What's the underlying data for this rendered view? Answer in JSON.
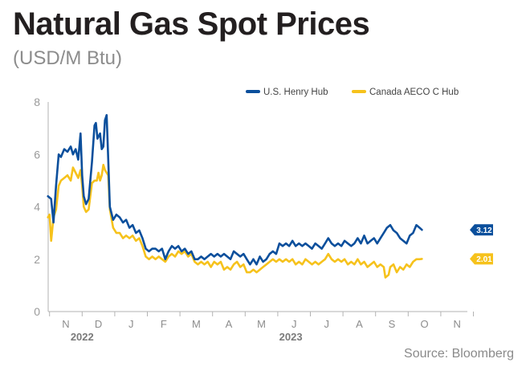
{
  "title": "Natural Gas Spot Prices",
  "subtitle": "(USD/M Btu)",
  "source": "Source: Bloomberg",
  "colors": {
    "henry": "#0b4f9c",
    "aeco": "#f6c21c",
    "axis": "#b3b3b3"
  },
  "chart_data": {
    "type": "line",
    "title": "Natural Gas Spot Prices",
    "subtitle": "(USD/M Btu)",
    "ylim": [
      0,
      8
    ],
    "yticks": [
      0,
      2,
      4,
      6,
      8
    ],
    "month_ticks": [
      "N",
      "D",
      "J",
      "F",
      "M",
      "A",
      "M",
      "J",
      "J",
      "A",
      "S",
      "O",
      "N"
    ],
    "years": [
      {
        "label": "2022",
        "month_index": 0.5
      },
      {
        "label": "2023",
        "month_index": 6.9
      }
    ],
    "legend": [
      "U.S. Henry Hub",
      "Canada AECO C Hub"
    ],
    "legend_position": "top-right",
    "grid": false,
    "x_unit": "months from Nov 1, 2022",
    "series": [
      {
        "name": "U.S. Henry Hub",
        "end_label": "3.12",
        "points": [
          [
            -0.55,
            4.4
          ],
          [
            -0.45,
            4.3
          ],
          [
            -0.38,
            3.4
          ],
          [
            -0.3,
            4.8
          ],
          [
            -0.22,
            6.0
          ],
          [
            -0.15,
            5.9
          ],
          [
            -0.05,
            6.2
          ],
          [
            0.05,
            6.1
          ],
          [
            0.15,
            6.3
          ],
          [
            0.22,
            6.0
          ],
          [
            0.3,
            6.2
          ],
          [
            0.38,
            5.8
          ],
          [
            0.45,
            6.8
          ],
          [
            0.5,
            5.2
          ],
          [
            0.55,
            4.4
          ],
          [
            0.62,
            4.1
          ],
          [
            0.7,
            4.3
          ],
          [
            0.8,
            5.7
          ],
          [
            0.88,
            7.1
          ],
          [
            0.92,
            7.2
          ],
          [
            0.97,
            6.6
          ],
          [
            1.05,
            6.8
          ],
          [
            1.1,
            6.2
          ],
          [
            1.15,
            6.3
          ],
          [
            1.2,
            7.3
          ],
          [
            1.25,
            7.5
          ],
          [
            1.3,
            5.8
          ],
          [
            1.35,
            4.0
          ],
          [
            1.45,
            3.5
          ],
          [
            1.55,
            3.7
          ],
          [
            1.65,
            3.6
          ],
          [
            1.75,
            3.4
          ],
          [
            1.85,
            3.5
          ],
          [
            1.95,
            3.2
          ],
          [
            2.05,
            3.3
          ],
          [
            2.15,
            3.0
          ],
          [
            2.25,
            3.1
          ],
          [
            2.35,
            2.8
          ],
          [
            2.45,
            2.4
          ],
          [
            2.55,
            2.3
          ],
          [
            2.65,
            2.4
          ],
          [
            2.75,
            2.4
          ],
          [
            2.85,
            2.3
          ],
          [
            2.95,
            2.4
          ],
          [
            3.05,
            2.0
          ],
          [
            3.15,
            2.3
          ],
          [
            3.25,
            2.5
          ],
          [
            3.35,
            2.4
          ],
          [
            3.45,
            2.5
          ],
          [
            3.55,
            2.3
          ],
          [
            3.65,
            2.4
          ],
          [
            3.75,
            2.2
          ],
          [
            3.85,
            2.3
          ],
          [
            3.95,
            2.0
          ],
          [
            4.05,
            2.0
          ],
          [
            4.15,
            2.1
          ],
          [
            4.25,
            2.0
          ],
          [
            4.35,
            2.1
          ],
          [
            4.45,
            2.2
          ],
          [
            4.55,
            2.1
          ],
          [
            4.65,
            2.2
          ],
          [
            4.75,
            2.1
          ],
          [
            4.85,
            2.2
          ],
          [
            4.95,
            2.1
          ],
          [
            5.05,
            2.0
          ],
          [
            5.15,
            2.3
          ],
          [
            5.25,
            2.2
          ],
          [
            5.35,
            2.1
          ],
          [
            5.45,
            2.2
          ],
          [
            5.55,
            2.0
          ],
          [
            5.65,
            1.8
          ],
          [
            5.75,
            2.0
          ],
          [
            5.85,
            1.8
          ],
          [
            5.95,
            2.1
          ],
          [
            6.05,
            1.9
          ],
          [
            6.15,
            2.0
          ],
          [
            6.25,
            2.2
          ],
          [
            6.35,
            2.3
          ],
          [
            6.45,
            2.2
          ],
          [
            6.55,
            2.6
          ],
          [
            6.65,
            2.5
          ],
          [
            6.75,
            2.6
          ],
          [
            6.85,
            2.5
          ],
          [
            6.95,
            2.7
          ],
          [
            7.05,
            2.5
          ],
          [
            7.15,
            2.6
          ],
          [
            7.25,
            2.5
          ],
          [
            7.35,
            2.6
          ],
          [
            7.45,
            2.5
          ],
          [
            7.55,
            2.4
          ],
          [
            7.65,
            2.6
          ],
          [
            7.75,
            2.5
          ],
          [
            7.85,
            2.4
          ],
          [
            7.95,
            2.6
          ],
          [
            8.05,
            2.8
          ],
          [
            8.15,
            2.6
          ],
          [
            8.25,
            2.5
          ],
          [
            8.35,
            2.6
          ],
          [
            8.45,
            2.5
          ],
          [
            8.55,
            2.7
          ],
          [
            8.65,
            2.6
          ],
          [
            8.75,
            2.5
          ],
          [
            8.85,
            2.6
          ],
          [
            8.95,
            2.8
          ],
          [
            9.05,
            2.6
          ],
          [
            9.15,
            2.9
          ],
          [
            9.25,
            2.6
          ],
          [
            9.35,
            2.7
          ],
          [
            9.45,
            2.8
          ],
          [
            9.55,
            2.6
          ],
          [
            9.65,
            2.8
          ],
          [
            9.75,
            3.0
          ],
          [
            9.85,
            3.2
          ],
          [
            9.95,
            3.3
          ],
          [
            10.05,
            3.1
          ],
          [
            10.15,
            3.0
          ],
          [
            10.25,
            2.8
          ],
          [
            10.35,
            2.7
          ],
          [
            10.45,
            2.6
          ],
          [
            10.55,
            2.9
          ],
          [
            10.65,
            3.0
          ],
          [
            10.75,
            3.3
          ],
          [
            10.85,
            3.2
          ],
          [
            10.92,
            3.12
          ]
        ]
      },
      {
        "name": "Canada AECO C Hub",
        "end_label": "2.01",
        "points": [
          [
            -0.55,
            3.6
          ],
          [
            -0.5,
            3.7
          ],
          [
            -0.45,
            2.7
          ],
          [
            -0.38,
            3.6
          ],
          [
            -0.3,
            3.9
          ],
          [
            -0.22,
            4.8
          ],
          [
            -0.15,
            5.0
          ],
          [
            -0.05,
            5.1
          ],
          [
            0.05,
            5.2
          ],
          [
            0.15,
            5.0
          ],
          [
            0.22,
            5.5
          ],
          [
            0.3,
            5.3
          ],
          [
            0.38,
            5.1
          ],
          [
            0.45,
            5.4
          ],
          [
            0.5,
            4.8
          ],
          [
            0.55,
            4.0
          ],
          [
            0.62,
            3.8
          ],
          [
            0.7,
            3.9
          ],
          [
            0.8,
            4.9
          ],
          [
            0.88,
            5.0
          ],
          [
            0.95,
            5.0
          ],
          [
            1.0,
            5.3
          ],
          [
            1.05,
            5.0
          ],
          [
            1.1,
            5.2
          ],
          [
            1.15,
            5.6
          ],
          [
            1.2,
            5.4
          ],
          [
            1.25,
            5.3
          ],
          [
            1.3,
            5.2
          ],
          [
            1.35,
            3.9
          ],
          [
            1.45,
            3.2
          ],
          [
            1.55,
            3.0
          ],
          [
            1.65,
            3.0
          ],
          [
            1.75,
            2.8
          ],
          [
            1.85,
            2.9
          ],
          [
            1.95,
            2.8
          ],
          [
            2.05,
            2.9
          ],
          [
            2.15,
            2.7
          ],
          [
            2.25,
            2.8
          ],
          [
            2.35,
            2.5
          ],
          [
            2.45,
            2.1
          ],
          [
            2.55,
            2.0
          ],
          [
            2.65,
            2.1
          ],
          [
            2.75,
            2.0
          ],
          [
            2.85,
            2.1
          ],
          [
            2.95,
            2.0
          ],
          [
            3.05,
            1.9
          ],
          [
            3.15,
            2.1
          ],
          [
            3.25,
            2.2
          ],
          [
            3.35,
            2.1
          ],
          [
            3.45,
            2.3
          ],
          [
            3.55,
            2.2
          ],
          [
            3.65,
            2.3
          ],
          [
            3.75,
            2.1
          ],
          [
            3.85,
            2.2
          ],
          [
            3.95,
            1.9
          ],
          [
            4.05,
            1.8
          ],
          [
            4.15,
            1.9
          ],
          [
            4.25,
            1.8
          ],
          [
            4.35,
            1.9
          ],
          [
            4.45,
            1.7
          ],
          [
            4.55,
            1.9
          ],
          [
            4.65,
            1.8
          ],
          [
            4.75,
            1.9
          ],
          [
            4.85,
            1.6
          ],
          [
            4.95,
            1.7
          ],
          [
            5.05,
            1.6
          ],
          [
            5.15,
            1.8
          ],
          [
            5.25,
            1.9
          ],
          [
            5.35,
            1.7
          ],
          [
            5.45,
            1.8
          ],
          [
            5.55,
            1.5
          ],
          [
            5.65,
            1.5
          ],
          [
            5.75,
            1.6
          ],
          [
            5.85,
            1.5
          ],
          [
            5.95,
            1.6
          ],
          [
            6.05,
            1.7
          ],
          [
            6.15,
            1.8
          ],
          [
            6.25,
            1.9
          ],
          [
            6.35,
            2.0
          ],
          [
            6.45,
            1.9
          ],
          [
            6.55,
            2.0
          ],
          [
            6.65,
            1.9
          ],
          [
            6.75,
            2.0
          ],
          [
            6.85,
            1.9
          ],
          [
            6.95,
            2.0
          ],
          [
            7.05,
            1.8
          ],
          [
            7.15,
            1.9
          ],
          [
            7.25,
            1.8
          ],
          [
            7.35,
            2.0
          ],
          [
            7.45,
            1.9
          ],
          [
            7.55,
            1.8
          ],
          [
            7.65,
            1.9
          ],
          [
            7.75,
            1.8
          ],
          [
            7.85,
            1.9
          ],
          [
            7.95,
            2.0
          ],
          [
            8.05,
            2.2
          ],
          [
            8.15,
            2.0
          ],
          [
            8.25,
            1.9
          ],
          [
            8.35,
            2.0
          ],
          [
            8.45,
            1.9
          ],
          [
            8.55,
            2.0
          ],
          [
            8.65,
            1.8
          ],
          [
            8.75,
            1.9
          ],
          [
            8.85,
            1.8
          ],
          [
            8.95,
            2.0
          ],
          [
            9.05,
            1.8
          ],
          [
            9.15,
            1.9
          ],
          [
            9.25,
            1.7
          ],
          [
            9.35,
            1.8
          ],
          [
            9.45,
            1.9
          ],
          [
            9.55,
            1.7
          ],
          [
            9.65,
            1.8
          ],
          [
            9.75,
            1.7
          ],
          [
            9.8,
            1.3
          ],
          [
            9.9,
            1.4
          ],
          [
            9.95,
            1.7
          ],
          [
            10.05,
            1.8
          ],
          [
            10.15,
            1.5
          ],
          [
            10.25,
            1.7
          ],
          [
            10.35,
            1.6
          ],
          [
            10.45,
            1.8
          ],
          [
            10.55,
            1.7
          ],
          [
            10.65,
            1.9
          ],
          [
            10.75,
            2.0
          ],
          [
            10.85,
            2.0
          ],
          [
            10.92,
            2.01
          ]
        ]
      }
    ]
  }
}
